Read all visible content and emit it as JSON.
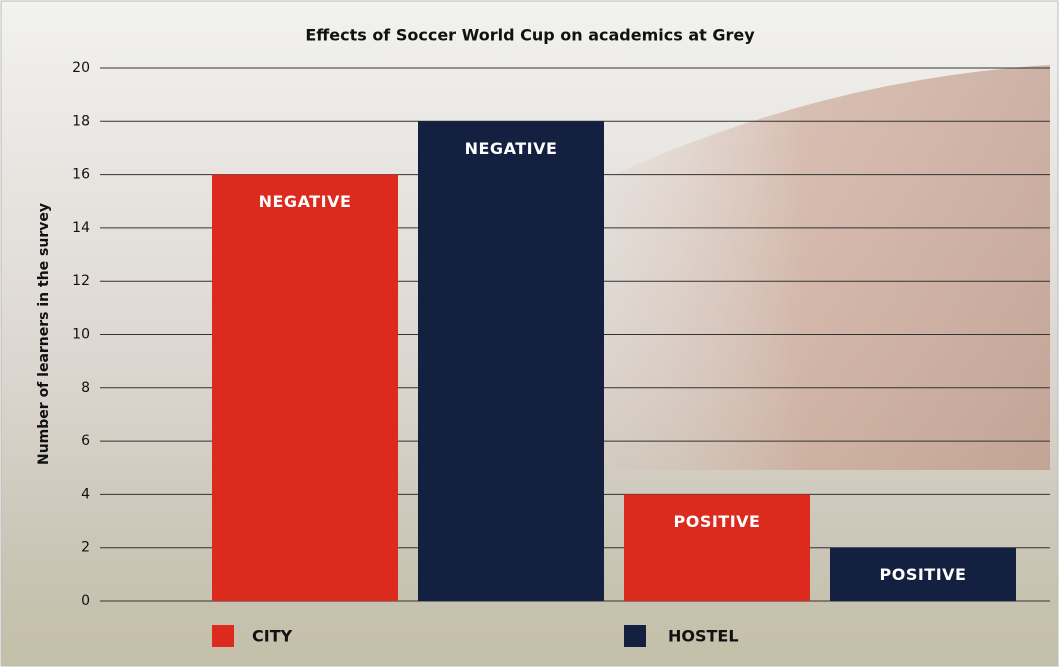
{
  "chart_data": {
    "type": "bar",
    "title": "Effects of Soccer World Cup on academics at Grey",
    "ylabel": "Number of learners in the survey",
    "categories": [
      "NEGATIVE",
      "POSITIVE"
    ],
    "series": [
      {
        "name": "CITY",
        "color": "#dc2a1e",
        "values": [
          16,
          4
        ]
      },
      {
        "name": "HOSTEL",
        "color": "#14203f",
        "values": [
          18,
          2
        ]
      }
    ],
    "ylim": [
      0,
      20
    ],
    "yticks": [
      0,
      2,
      4,
      6,
      8,
      10,
      12,
      14,
      16,
      18,
      20
    ],
    "grid": true
  }
}
